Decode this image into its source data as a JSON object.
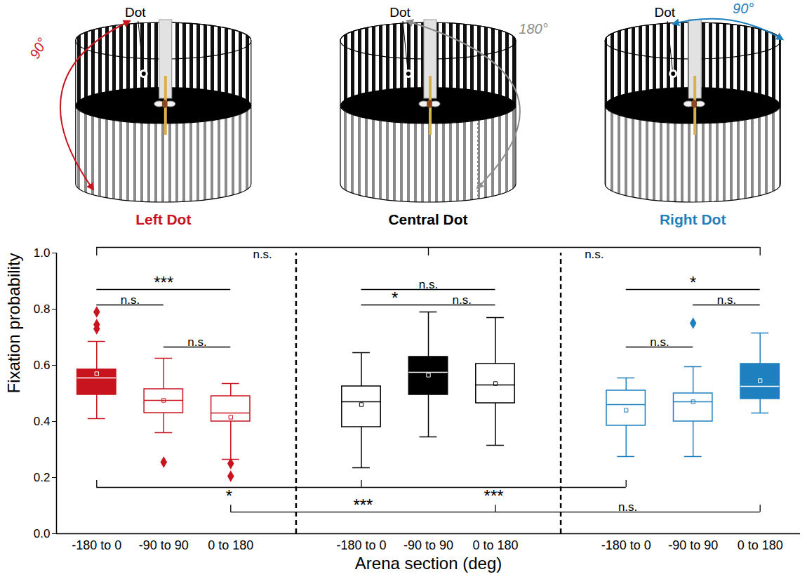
{
  "chart_data": {
    "type": "box",
    "xlabel": "Arena section (deg)",
    "ylabel": "Fixation probability",
    "categories": [
      "-180 to 0",
      "-90 to 90",
      "0 to 180"
    ],
    "ylim": [
      0,
      1
    ],
    "yticks": [
      {
        "value": 0,
        "label": "0.0"
      },
      0.2,
      0.4,
      0.6,
      0.8,
      {
        "value": 1,
        "label": "1.0"
      }
    ],
    "series": [
      {
        "name": "Left Dot",
        "color": "#c8141e",
        "colors": [
          "#c8141e",
          "#ffffff",
          "#ffffff"
        ],
        "illustration": {
          "dot_label": "Dot",
          "angle_label": "90°"
        },
        "boxes": [
          {
            "whisker_low": 0.41,
            "q1": 0.495,
            "median": 0.555,
            "q3": 0.585,
            "whisker_high": 0.685,
            "mean": 0.57,
            "outliers": [
              0.79,
              0.745,
              0.73
            ]
          },
          {
            "whisker_low": 0.36,
            "q1": 0.43,
            "median": 0.475,
            "q3": 0.515,
            "whisker_high": 0.625,
            "mean": 0.475,
            "outliers": [
              0.255
            ]
          },
          {
            "whisker_low": 0.265,
            "q1": 0.4,
            "median": 0.43,
            "q3": 0.49,
            "whisker_high": 0.535,
            "mean": 0.415,
            "outliers": [
              0.25,
              0.205
            ]
          }
        ]
      },
      {
        "name": "Central Dot",
        "color": "#000000",
        "colors": [
          "#ffffff",
          "#000000",
          "#ffffff"
        ],
        "illustration": {
          "dot_label": "Dot",
          "angle_label": "180°"
        },
        "boxes": [
          {
            "whisker_low": 0.235,
            "q1": 0.38,
            "median": 0.47,
            "q3": 0.525,
            "whisker_high": 0.645,
            "mean": 0.46,
            "outliers": []
          },
          {
            "whisker_low": 0.345,
            "q1": 0.495,
            "median": 0.575,
            "q3": 0.63,
            "whisker_high": 0.79,
            "mean": 0.565,
            "outliers": []
          },
          {
            "whisker_low": 0.315,
            "q1": 0.465,
            "median": 0.53,
            "q3": 0.605,
            "whisker_high": 0.77,
            "mean": 0.535,
            "outliers": []
          }
        ]
      },
      {
        "name": "Right Dot",
        "color": "#1f80c0",
        "colors": [
          "#ffffff",
          "#ffffff",
          "#1f80c0"
        ],
        "illustration": {
          "dot_label": "Dot",
          "angle_label": "90°"
        },
        "boxes": [
          {
            "whisker_low": 0.275,
            "q1": 0.385,
            "median": 0.46,
            "q3": 0.51,
            "whisker_high": 0.555,
            "mean": 0.44,
            "outliers": []
          },
          {
            "whisker_low": 0.275,
            "q1": 0.4,
            "median": 0.47,
            "q3": 0.5,
            "whisker_high": 0.595,
            "mean": 0.47,
            "outliers": [
              0.75
            ]
          },
          {
            "whisker_low": 0.43,
            "q1": 0.48,
            "median": 0.525,
            "q3": 0.605,
            "whisker_high": 0.715,
            "mean": 0.545,
            "outliers": []
          }
        ]
      }
    ],
    "comparisons": [
      {
        "path": [
          [
            "Left Dot",
            "-180 to 0"
          ],
          [
            "Left Dot",
            "-90 to 90"
          ]
        ],
        "y": 0.815,
        "labels": [
          "n.s."
        ]
      },
      {
        "path": [
          [
            "Left Dot",
            "-90 to 90"
          ],
          [
            "Left Dot",
            "0 to 180"
          ]
        ],
        "y": 0.665,
        "labels": [
          "n.s."
        ]
      },
      {
        "path": [
          [
            "Left Dot",
            "-180 to 0"
          ],
          [
            "Left Dot",
            "0 to 180"
          ]
        ],
        "y": 0.87,
        "labels": [
          "***"
        ]
      },
      {
        "path": [
          [
            "Central Dot",
            "-180 to 0"
          ],
          [
            "Central Dot",
            "-90 to 90"
          ]
        ],
        "y": 0.815,
        "labels": [
          "*"
        ]
      },
      {
        "path": [
          [
            "Central Dot",
            "-90 to 90"
          ],
          [
            "Central Dot",
            "0 to 180"
          ]
        ],
        "y": 0.815,
        "labels": [
          "n.s."
        ]
      },
      {
        "path": [
          [
            "Central Dot",
            "-180 to 0"
          ],
          [
            "Central Dot",
            "0 to 180"
          ]
        ],
        "y": 0.87,
        "labels": [
          "n.s."
        ]
      },
      {
        "path": [
          [
            "Right Dot",
            "-180 to 0"
          ],
          [
            "Right Dot",
            "-90 to 90"
          ]
        ],
        "y": 0.665,
        "labels": [
          "n.s."
        ]
      },
      {
        "path": [
          [
            "Right Dot",
            "-90 to 90"
          ],
          [
            "Right Dot",
            "0 to 180"
          ]
        ],
        "y": 0.815,
        "labels": [
          "n.s."
        ]
      },
      {
        "path": [
          [
            "Right Dot",
            "-180 to 0"
          ],
          [
            "Right Dot",
            "0 to 180"
          ]
        ],
        "y": 0.87,
        "labels": [
          "*"
        ]
      },
      {
        "path": [
          [
            "Left Dot",
            "-180 to 0"
          ],
          [
            "Central Dot",
            "-90 to 90"
          ],
          [
            "Right Dot",
            "0 to 180"
          ]
        ],
        "y": 1.02,
        "labels": [
          "n.s.",
          "n.s."
        ]
      },
      {
        "path": [
          [
            "Left Dot",
            "-180 to 0"
          ],
          [
            "Central Dot",
            "-180 to 0"
          ],
          [
            "Right Dot",
            "-180 to 0"
          ]
        ],
        "y": 0.165,
        "labels": [
          "*",
          "***"
        ]
      },
      {
        "path": [
          [
            "Left Dot",
            "0 to 180"
          ],
          [
            "Central Dot",
            "0 to 180"
          ],
          [
            "Right Dot",
            "0 to 180"
          ]
        ],
        "y": 0.077,
        "labels": [
          "***",
          "n.s."
        ]
      }
    ]
  }
}
